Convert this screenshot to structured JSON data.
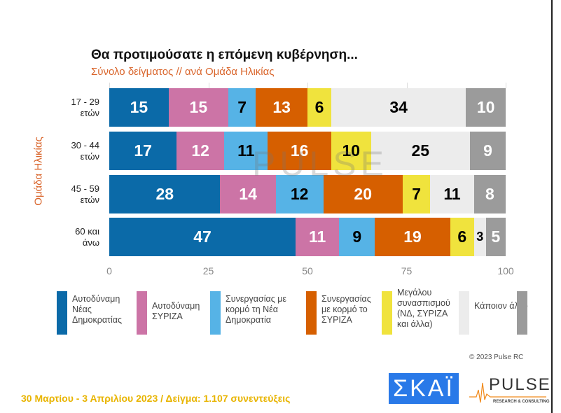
{
  "chart_data": {
    "type": "stacked-bar-horizontal",
    "title": "Θα προτιμούσατε η επόμενη κυβέρνηση...",
    "subtitle": "Σύνολο δείγματος // ανά Ομάδα Ηλικίας",
    "ylabel": "Ομάδα Ηλικίας",
    "xlim": [
      0,
      100
    ],
    "xticks": [
      "0",
      "25",
      "50",
      "75",
      "100"
    ],
    "categories": [
      [
        "17 - 29",
        "ετών"
      ],
      [
        "30 - 44",
        "ετών"
      ],
      [
        "45 - 59",
        "ετών"
      ],
      [
        "60 και",
        "άνω"
      ]
    ],
    "series": [
      {
        "name": "Αυτοδύναμη Νέας Δημοκρατίας",
        "color": "#0b6aa8",
        "text": "#fff",
        "values": [
          15,
          17,
          28,
          47
        ]
      },
      {
        "name": "Αυτοδύναμη ΣΥΡΙΖΑ",
        "color": "#cc74a6",
        "text": "#fff",
        "values": [
          15,
          12,
          14,
          11
        ]
      },
      {
        "name": "Συνεργασίας με κορμό τη Νέα Δημοκρατία",
        "color": "#56b3e6",
        "text": "#000",
        "values": [
          7,
          11,
          12,
          9
        ]
      },
      {
        "name": "Συνεργασίας με κορμό το ΣΥΡΙΖΑ",
        "color": "#d65f00",
        "text": "#fff",
        "values": [
          13,
          16,
          20,
          19
        ]
      },
      {
        "name": "Μεγάλου συνασπισμού (ΝΔ, ΣΥΡΙΖΑ και άλλα)",
        "color": "#f0e33d",
        "text": "#000",
        "values": [
          6,
          10,
          7,
          6
        ]
      },
      {
        "name": "Κάποιον άλλο",
        "color": "#ececec",
        "text": "#000",
        "values": [
          34,
          25,
          11,
          3
        ]
      },
      {
        "name": "",
        "color": "#9b9b9b",
        "text": "#fff",
        "values": [
          10,
          9,
          8,
          5
        ]
      }
    ],
    "legend": "bottom"
  },
  "copyright": "© 2023 Pulse RC",
  "footer": "30 Μαρτίου - 3  Απριλίου  2023  /  Δείγμα:  1.107 συνεντεύξεις",
  "logos": {
    "skai": "ΣΚΑΪ",
    "pulse": "PULSE",
    "pulse_sub": "RESEARCH & CONSULTING",
    "watermark": "PULSE"
  }
}
